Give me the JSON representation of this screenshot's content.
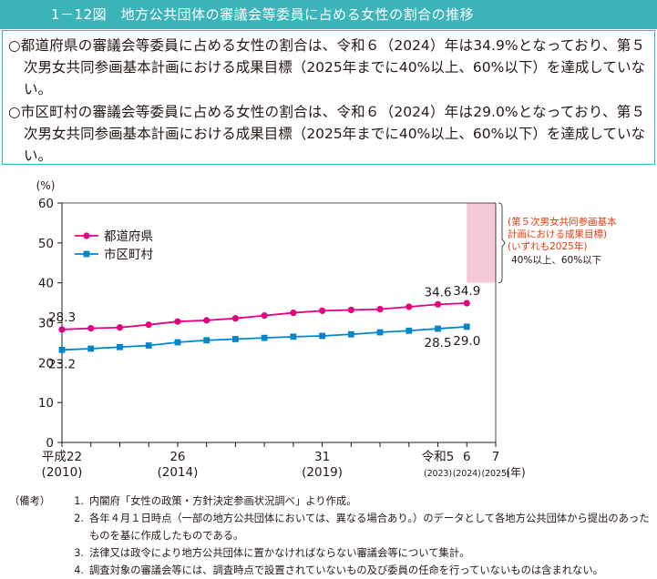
{
  "title": "1－12図　地方公共団体の審議会等委員に占める女性の割合の推移",
  "summary": [
    "○都道府県の審議会等委員に占める女性の割合は、令和６（2024）年は34.9%となっており、第５次男女共同参画基本計画における成果目標（2025年までに40%以上、60%以下）を達成していない。",
    "○市区町村の審議会等委員に占める女性の割合は、令和６（2024）年は29.0%となっており、第５次男女共同参画基本計画における成果目標（2025年までに40%以上、60%以下）を達成していない。"
  ],
  "chart_data": {
    "type": "line",
    "ylabel": "(%)",
    "xunit": "(年)",
    "ylim": [
      0,
      60
    ],
    "yticks": [
      0,
      10,
      20,
      30,
      40,
      50,
      60
    ],
    "x": [
      2010,
      2011,
      2012,
      2013,
      2014,
      2015,
      2016,
      2017,
      2018,
      2019,
      2020,
      2021,
      2022,
      2023,
      2024
    ],
    "xlim": [
      2010,
      2025
    ],
    "xticklabels": [
      {
        "x": 2010,
        "era": "平成22",
        "year": "(2010)"
      },
      {
        "x": 2014,
        "era": "26",
        "year": "(2014)"
      },
      {
        "x": 2019,
        "era": "31",
        "year": "(2019)"
      },
      {
        "x": 2023,
        "era": "令和5",
        "year": "(2023)"
      },
      {
        "x": 2024,
        "era": "6",
        "year": "(2024)"
      },
      {
        "x": 2025,
        "era": "7",
        "year": "(2025)"
      }
    ],
    "series": [
      {
        "name": "都道府県",
        "color": "#e4007f",
        "marker": "circle",
        "values": [
          28.3,
          28.6,
          28.8,
          29.5,
          30.3,
          30.6,
          31.1,
          31.8,
          32.5,
          33.0,
          33.2,
          33.4,
          34.0,
          34.6,
          34.9
        ],
        "labels": [
          {
            "i": 0,
            "text": "28.3",
            "pos": "above"
          },
          {
            "i": 13,
            "text": "34.6",
            "pos": "above"
          },
          {
            "i": 14,
            "text": "34.9",
            "pos": "above"
          }
        ]
      },
      {
        "name": "市区町村",
        "color": "#0086cd",
        "marker": "square",
        "values": [
          23.2,
          23.5,
          23.9,
          24.3,
          25.1,
          25.6,
          25.9,
          26.2,
          26.5,
          26.7,
          27.1,
          27.6,
          28.0,
          28.5,
          29.0
        ],
        "labels": [
          {
            "i": 0,
            "text": "23.2",
            "pos": "below"
          },
          {
            "i": 13,
            "text": "28.5",
            "pos": "below"
          },
          {
            "i": 14,
            "text": "29.0",
            "pos": "below"
          }
        ]
      }
    ],
    "target": {
      "x": 2025,
      "ymin": 40,
      "ymax": 60,
      "color": "#f6c9d9",
      "label_lines": [
        "(第５次男女共同参画基本",
        "計画における成果目標)",
        "(いずれも2025年)"
      ],
      "label_color": "#e8380d",
      "value_text": "40%以上、60%以下"
    }
  },
  "notes_label": "（備考）",
  "notes": [
    {
      "num": "1.",
      "text": "内閣府「女性の政策・方針決定参画状況調べ」より作成。"
    },
    {
      "num": "2.",
      "text": "各年４月１日時点（一部の地方公共団体においては、異なる場合あり。）のデータとして各地方公共団体から提出のあったものを基に作成したものである。"
    },
    {
      "num": "3.",
      "text": "法律又は政令により地方公共団体に置かなければならない審議会等について集計。"
    },
    {
      "num": "4.",
      "text": "調査対象の審議会等には、調査時点で設置されていないもの及び委員の任命を行っていないものは含まれない。"
    }
  ]
}
